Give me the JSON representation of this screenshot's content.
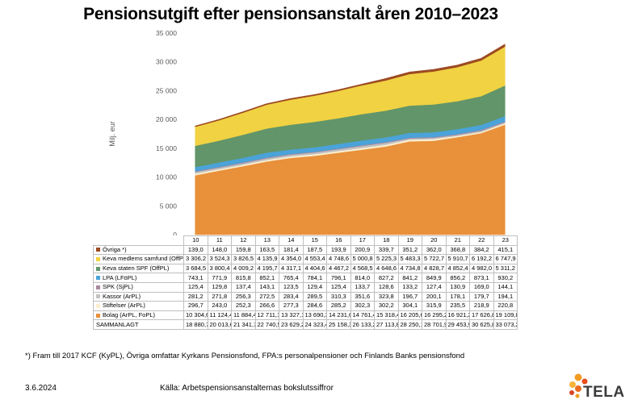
{
  "title": "Pensionsutgift efter pensionsanstalt åren 2010–2023",
  "footnote": "*) Fram till 2017 KCF (KyPL), Övriga omfattar Kyrkans Pensionsfond, FPA:s personalpensioner och Finlands Banks pensionsfond",
  "date": "3.6.2024",
  "source": "Källa: Arbetspensionsanstalternas bokslutssiffror",
  "logo_text": "TELA",
  "chart_data": {
    "type": "area",
    "stacked": true,
    "title": "Pensionsutgift efter pensionsanstalt åren 2010–2023",
    "ylabel": "Milj. eur",
    "ylim": [
      0,
      35000
    ],
    "yticks": [
      "0",
      "5 000",
      "10 000",
      "15 000",
      "20 000",
      "25 000",
      "30 000",
      "35 000"
    ],
    "categories": [
      "10",
      "11",
      "12",
      "13",
      "14",
      "15",
      "16",
      "17",
      "18",
      "19",
      "20",
      "21",
      "22",
      "23"
    ],
    "series": [
      {
        "name": "Bolag (ArPL, FoPL)",
        "color": "#e8903a",
        "values": [
          10304.6,
          11124.4,
          11884.4,
          12711.1,
          13327.1,
          13690.3,
          14231.6,
          14761.4,
          15318.4,
          16205.6,
          16295.2,
          16921.2,
          17626.8,
          19109.8
        ],
        "labels": [
          "10 304,6",
          "11 124,4",
          "11 884,4",
          "12 711,1",
          "13 327,1",
          "13 690,3",
          "14 231,6",
          "14 761,4",
          "15 318,4",
          "16 205,6",
          "16 295,2",
          "16 921,2",
          "17 626,8",
          "19 109,8"
        ]
      },
      {
        "name": "Stiftelser (ArPL)",
        "color": "#fbeecf",
        "values": [
          296.7,
          243.0,
          252.3,
          266.6,
          277.3,
          284.6,
          285.2,
          302.3,
          302.2,
          304.1,
          315.9,
          235.5,
          218.9,
          220.8
        ],
        "labels": [
          "296,7",
          "243,0",
          "252,3",
          "266,6",
          "277,3",
          "284,6",
          "285,2",
          "302,3",
          "302,2",
          "304,1",
          "315,9",
          "235,5",
          "218,9",
          "220,8"
        ]
      },
      {
        "name": "Kassor (ArPL)",
        "color": "#c2c2c2",
        "values": [
          281.2,
          271.8,
          256.3,
          272.5,
          283.4,
          289.5,
          310.3,
          351.6,
          323.8,
          196.7,
          200.1,
          178.1,
          179.7,
          194.1
        ],
        "labels": [
          "281,2",
          "271,8",
          "256,3",
          "272,5",
          "283,4",
          "289,5",
          "310,3",
          "351,6",
          "323,8",
          "196,7",
          "200,1",
          "178,1",
          "179,7",
          "194,1"
        ]
      },
      {
        "name": "SPK (SjPL)",
        "color": "#a88a9e",
        "values": [
          125.4,
          129.8,
          137.4,
          143.1,
          123.5,
          129.4,
          125.4,
          133.7,
          128.6,
          133.2,
          127.4,
          130.9,
          169.0,
          144.1
        ],
        "labels": [
          "125,4",
          "129,8",
          "137,4",
          "143,1",
          "123,5",
          "129,4",
          "125,4",
          "133,7",
          "128,6",
          "133,2",
          "127,4",
          "130,9",
          "169,0",
          "144,1"
        ]
      },
      {
        "name": "LPA (LFöPL)",
        "color": "#4aa3d9",
        "values": [
          743.1,
          771.9,
          815.8,
          852.1,
          765.4,
          784.1,
          796.1,
          814.0,
          827.2,
          841.2,
          849.9,
          856.2,
          873.1,
          930.2
        ],
        "labels": [
          "743,1",
          "771,9",
          "815,8",
          "852,1",
          "765,4",
          "784,1",
          "796,1",
          "814,0",
          "827,2",
          "841,2",
          "849,9",
          "856,2",
          "873,1",
          "930,2"
        ]
      },
      {
        "name": "Keva staten SPF (OffPL)",
        "color": "#62956a",
        "values": [
          3684.5,
          3800.4,
          4009.2,
          4195.7,
          4317.1,
          4404.6,
          4467.2,
          4568.5,
          4648.6,
          4734.8,
          4828.7,
          4852.4,
          4982.0,
          5311.2
        ],
        "labels": [
          "3 684,5",
          "3 800,4",
          "4 009,2",
          "4 195,7",
          "4 317,1",
          "4 404,6",
          "4 467,2",
          "4 568,5",
          "4 648,6",
          "4 734,8",
          "4 828,7",
          "4 852,4",
          "4 982,0",
          "5 311,2"
        ]
      },
      {
        "name": "Keva medlems samfund (OffPL)",
        "color": "#f1d242",
        "values": [
          3306.2,
          3524.3,
          3826.5,
          4135.9,
          4354.0,
          4553.4,
          4748.6,
          5000.8,
          5225.3,
          5483.3,
          5722.7,
          5910.7,
          6192.2,
          6747.9
        ],
        "labels": [
          "3 306,2",
          "3 524,3",
          "3 826,5",
          "4 135,9",
          "4 354,0",
          "4 553,4",
          "4 748,6",
          "5 000,8",
          "5 225,3",
          "5 483,3",
          "5 722,7",
          "5 910,7",
          "6 192,2",
          "6 747,9"
        ]
      },
      {
        "name": "Övriga *)",
        "color": "#9c4a22",
        "values": [
          139.0,
          148.0,
          159.8,
          163.5,
          181.4,
          187.5,
          193.9,
          200.9,
          339.7,
          351.2,
          362.0,
          368.8,
          384.2,
          415.1
        ],
        "labels": [
          "139,0",
          "148,0",
          "159,8",
          "163,5",
          "181,4",
          "187,5",
          "193,9",
          "200,9",
          "339,7",
          "351,2",
          "362,0",
          "368,8",
          "384,2",
          "415,1"
        ]
      }
    ],
    "total": {
      "name": "SAMMANLAGT",
      "values": [
        18880.7,
        20013.6,
        21341.7,
        22740.5,
        23629.2,
        24323.4,
        25158.3,
        26133.2,
        27113.8,
        28250.1,
        28701.9,
        29453.9,
        30625.8,
        33073.2
      ],
      "labels": [
        "18 880,7",
        "20 013,6",
        "21 341,7",
        "22 740,5",
        "23 629,2",
        "24 323,4",
        "25 158,3",
        "26 133,2",
        "27 113,8",
        "28 250,1",
        "28 701,9",
        "29 453,9",
        "30 625,8",
        "33 073,2"
      ]
    }
  }
}
